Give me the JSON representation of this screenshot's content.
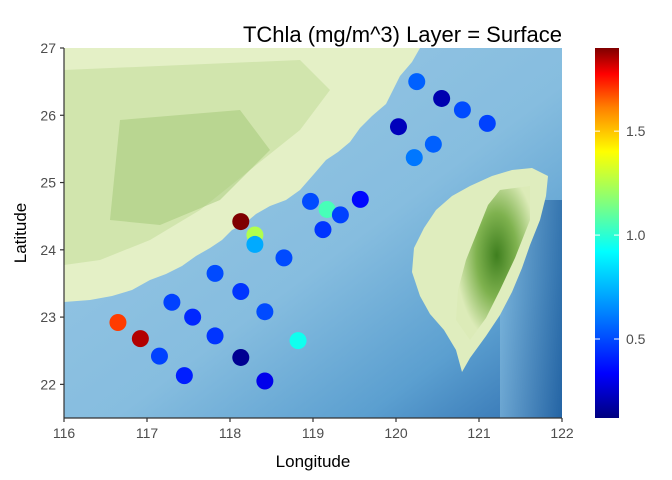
{
  "chart_data": {
    "type": "scatter",
    "title": "TChla (mg/m^3) Layer = Surface",
    "xlabel": "Longitude",
    "ylabel": "Latitude",
    "xlim": [
      116,
      122
    ],
    "ylim": [
      21.5,
      27
    ],
    "xticks": [
      "116",
      "117",
      "118",
      "119",
      "120",
      "121",
      "122"
    ],
    "yticks": [
      "22",
      "23",
      "24",
      "25",
      "26",
      "27"
    ],
    "colorbar": {
      "min": 0.12,
      "max": 1.9,
      "ticks": [
        "0.5",
        "1.0",
        "1.5"
      ],
      "tick_values": [
        0.5,
        1.0,
        1.5
      ],
      "colormap": [
        "#00007f",
        "#0000ff",
        "#007fff",
        "#00ffff",
        "#7fff7f",
        "#ffff00",
        "#ff7f00",
        "#ff0000",
        "#7f0000"
      ]
    },
    "background": "sea and terrain relief map",
    "colors": {
      "sea": "#8fc0e0",
      "land": "#e3f0c8",
      "terrain_high": "#4f8f2a"
    },
    "points": [
      {
        "x": 120.25,
        "y": 26.5,
        "value": 0.55
      },
      {
        "x": 120.55,
        "y": 26.25,
        "value": 0.2
      },
      {
        "x": 120.8,
        "y": 26.08,
        "value": 0.5
      },
      {
        "x": 121.1,
        "y": 25.88,
        "value": 0.48
      },
      {
        "x": 120.03,
        "y": 25.83,
        "value": 0.22
      },
      {
        "x": 120.45,
        "y": 25.57,
        "value": 0.55
      },
      {
        "x": 120.22,
        "y": 25.37,
        "value": 0.6
      },
      {
        "x": 119.57,
        "y": 24.75,
        "value": 0.35
      },
      {
        "x": 118.97,
        "y": 24.72,
        "value": 0.5
      },
      {
        "x": 119.17,
        "y": 24.6,
        "value": 1.05
      },
      {
        "x": 119.33,
        "y": 24.52,
        "value": 0.48
      },
      {
        "x": 119.12,
        "y": 24.3,
        "value": 0.45
      },
      {
        "x": 118.13,
        "y": 24.42,
        "value": 1.9
      },
      {
        "x": 118.3,
        "y": 24.22,
        "value": 1.25
      },
      {
        "x": 118.3,
        "y": 24.08,
        "value": 0.72
      },
      {
        "x": 118.65,
        "y": 23.88,
        "value": 0.5
      },
      {
        "x": 117.82,
        "y": 23.65,
        "value": 0.5
      },
      {
        "x": 118.13,
        "y": 23.38,
        "value": 0.45
      },
      {
        "x": 117.3,
        "y": 23.22,
        "value": 0.48
      },
      {
        "x": 117.55,
        "y": 23.0,
        "value": 0.42
      },
      {
        "x": 118.42,
        "y": 23.08,
        "value": 0.5
      },
      {
        "x": 117.82,
        "y": 22.72,
        "value": 0.45
      },
      {
        "x": 118.82,
        "y": 22.65,
        "value": 0.95
      },
      {
        "x": 116.65,
        "y": 22.92,
        "value": 1.7
      },
      {
        "x": 116.92,
        "y": 22.68,
        "value": 1.85
      },
      {
        "x": 117.15,
        "y": 22.42,
        "value": 0.48
      },
      {
        "x": 118.13,
        "y": 22.4,
        "value": 0.15
      },
      {
        "x": 117.45,
        "y": 22.13,
        "value": 0.4
      },
      {
        "x": 118.42,
        "y": 22.05,
        "value": 0.3
      }
    ]
  }
}
